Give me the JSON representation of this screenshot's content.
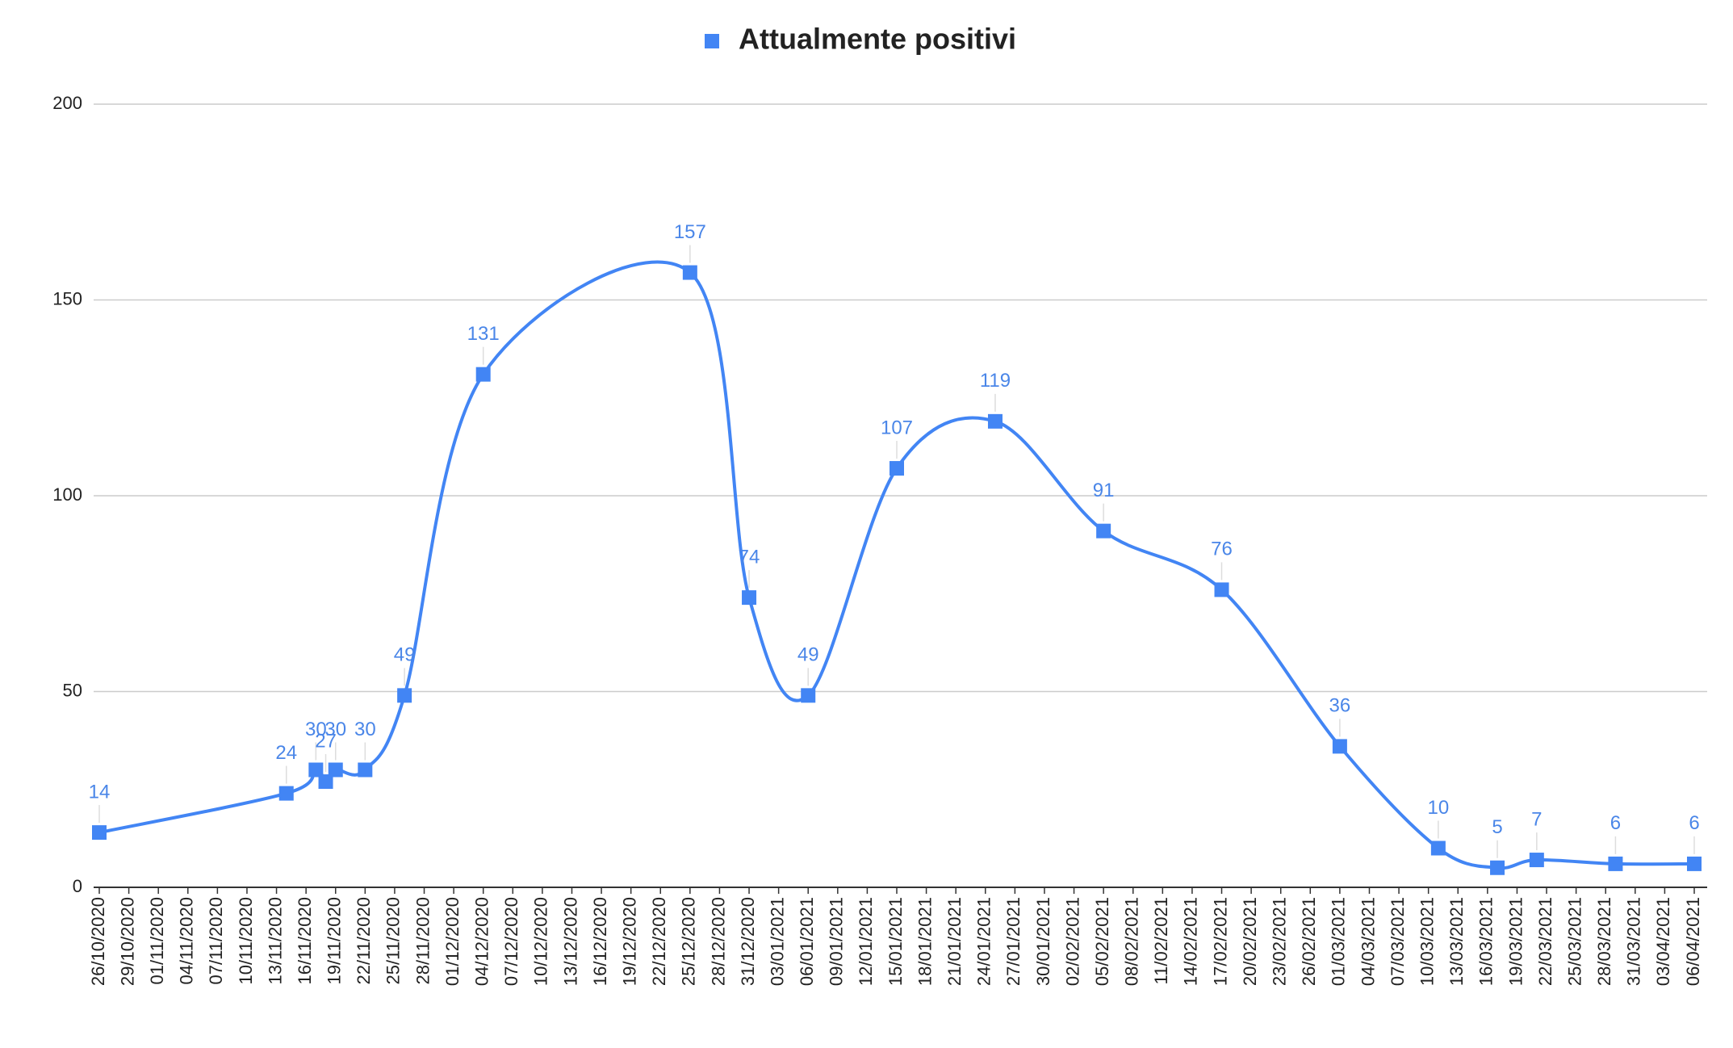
{
  "chart_data": {
    "type": "line",
    "title": "Attualmente positivi",
    "series": [
      {
        "name": "Attualmente positivi",
        "color": "#4285f4",
        "x": [
          "26/10/2020",
          "14/11/2020",
          "17/11/2020",
          "18/11/2020",
          "19/11/2020",
          "22/11/2020",
          "26/11/2020",
          "04/12/2020",
          "25/12/2020",
          "31/12/2020",
          "06/01/2021",
          "15/01/2021",
          "25/01/2021",
          "05/02/2021",
          "17/02/2021",
          "01/03/2021",
          "11/03/2021",
          "17/03/2021",
          "21/03/2021",
          "29/03/2021",
          "06/04/2021"
        ],
        "values": [
          14,
          24,
          30,
          27,
          30,
          30,
          49,
          131,
          157,
          74,
          49,
          107,
          119,
          91,
          76,
          36,
          10,
          5,
          7,
          6,
          6
        ]
      }
    ],
    "xlim": [
      "26/10/2020",
      "06/04/2021"
    ],
    "xticks": [
      "26/10/2020",
      "29/10/2020",
      "01/11/2020",
      "04/11/2020",
      "07/11/2020",
      "10/11/2020",
      "13/11/2020",
      "16/11/2020",
      "19/11/2020",
      "22/11/2020",
      "25/11/2020",
      "28/11/2020",
      "01/12/2020",
      "04/12/2020",
      "07/12/2020",
      "10/12/2020",
      "13/12/2020",
      "16/12/2020",
      "19/12/2020",
      "22/12/2020",
      "25/12/2020",
      "28/12/2020",
      "31/12/2020",
      "03/01/2021",
      "06/01/2021",
      "09/01/2021",
      "12/01/2021",
      "15/01/2021",
      "18/01/2021",
      "21/01/2021",
      "24/01/2021",
      "27/01/2021",
      "30/01/2021",
      "02/02/2021",
      "05/02/2021",
      "08/02/2021",
      "11/02/2021",
      "14/02/2021",
      "17/02/2021",
      "20/02/2021",
      "23/02/2021",
      "26/02/2021",
      "01/03/2021",
      "04/03/2021",
      "07/03/2021",
      "10/03/2021",
      "13/03/2021",
      "16/03/2021",
      "19/03/2021",
      "22/03/2021",
      "25/03/2021",
      "28/03/2021",
      "31/03/2021",
      "03/04/2021",
      "06/04/2021"
    ],
    "ylim": [
      0,
      200
    ],
    "yticks": [
      0,
      50,
      100,
      150,
      200
    ],
    "grid": true,
    "legend": "top"
  }
}
